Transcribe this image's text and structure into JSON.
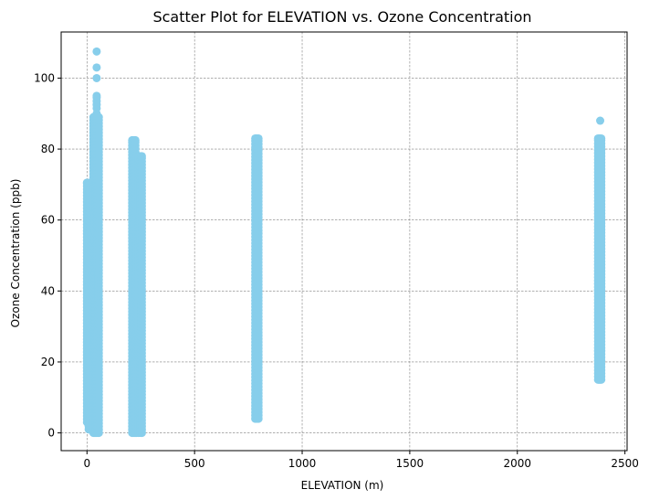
{
  "chart_data": {
    "type": "scatter",
    "title": "Scatter Plot for ELEVATION vs. Ozone Concentration",
    "xlabel": "ELEVATION (m)",
    "ylabel": "Ozone Concentration (ppb)",
    "xlim": [
      -120,
      2510
    ],
    "ylim": [
      -5,
      113
    ],
    "xticks": [
      0,
      500,
      1000,
      1500,
      2000,
      2500
    ],
    "yticks": [
      0,
      20,
      40,
      60,
      80,
      100
    ],
    "xtick_labels": [
      "0",
      "500",
      "1000",
      "1500",
      "2000",
      "2500"
    ],
    "ytick_labels": [
      "0",
      "20",
      "40",
      "60",
      "80",
      "100"
    ],
    "grid": true,
    "point_color": "#87ceeb",
    "clusters": [
      {
        "x": [
          0,
          2,
          4,
          6
        ],
        "y_min": 3,
        "y_max": 70.5,
        "outliers": []
      },
      {
        "x": [
          8,
          10,
          12,
          15
        ],
        "y_min": 1,
        "y_max": 70,
        "outliers": []
      },
      {
        "x": [
          30,
          35,
          40,
          45,
          50,
          55
        ],
        "y_min": 0,
        "y_max": 89,
        "outliers": [
          90,
          91.5,
          92.5,
          93.5,
          94.5,
          95,
          100,
          103,
          107.5
        ]
      },
      {
        "x": [
          210,
          215,
          220,
          225
        ],
        "y_min": 0,
        "y_max": 82.5,
        "outliers": []
      },
      {
        "x": [
          230,
          240,
          250,
          255
        ],
        "y_min": 0,
        "y_max": 78,
        "outliers": []
      },
      {
        "x": [
          782,
          787,
          792,
          797
        ],
        "y_min": 4,
        "y_max": 83,
        "outliers": []
      },
      {
        "x": [
          2375,
          2380,
          2385,
          2390
        ],
        "y_min": 15,
        "y_max": 83,
        "outliers": [
          88
        ]
      }
    ]
  }
}
